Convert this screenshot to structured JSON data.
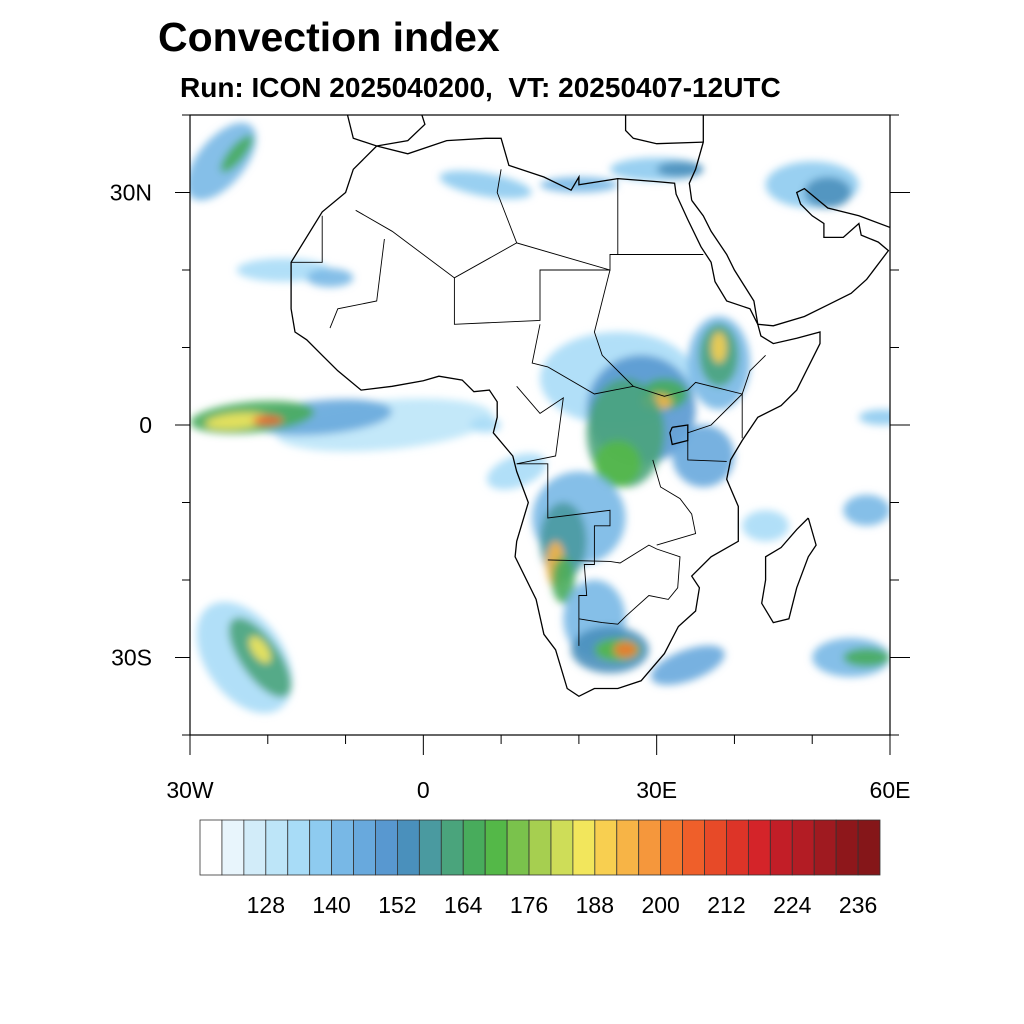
{
  "title": "Convection index",
  "subtitle": "Run: ICON 2025040200,  VT: 20250407-12UTC",
  "map": {
    "lon_range": [
      -30,
      60
    ],
    "lat_range": [
      -40,
      40
    ],
    "x_ticks": [
      {
        "lon": -30,
        "label": "30W"
      },
      {
        "lon": 0,
        "label": "0"
      },
      {
        "lon": 30,
        "label": "30E"
      },
      {
        "lon": 60,
        "label": "60E"
      }
    ],
    "y_ticks": [
      {
        "lat": 30,
        "label": "30N"
      },
      {
        "lat": 0,
        "label": "0"
      },
      {
        "lat": -30,
        "label": "30S"
      }
    ]
  },
  "colorbar": {
    "levels": [
      120,
      124,
      128,
      132,
      136,
      140,
      144,
      148,
      152,
      156,
      160,
      164,
      168,
      172,
      176,
      180,
      184,
      188,
      192,
      196,
      200,
      204,
      208,
      212,
      216,
      220,
      224,
      228,
      232,
      236
    ],
    "labels": [
      "128",
      "140",
      "152",
      "164",
      "176",
      "188",
      "200",
      "212",
      "224",
      "236"
    ],
    "colors": [
      "#ffffff",
      "#e8f5fc",
      "#d2ecf9",
      "#bde5f8",
      "#a8dcf7",
      "#8ecbf0",
      "#78b8e6",
      "#68a9dd",
      "#5898d0",
      "#4a90bc",
      "#4a9aa0",
      "#4aa47c",
      "#48ac5c",
      "#54b848",
      "#7ac24c",
      "#a6cf50",
      "#cedd58",
      "#f2e65c",
      "#f8cf50",
      "#f7b446",
      "#f5973c",
      "#f37a30",
      "#ef5f2a",
      "#e74a28",
      "#dd3428",
      "#d42429",
      "#c21e27",
      "#b31c24",
      "#9f1a20",
      "#8e171b",
      "#851619"
    ]
  }
}
